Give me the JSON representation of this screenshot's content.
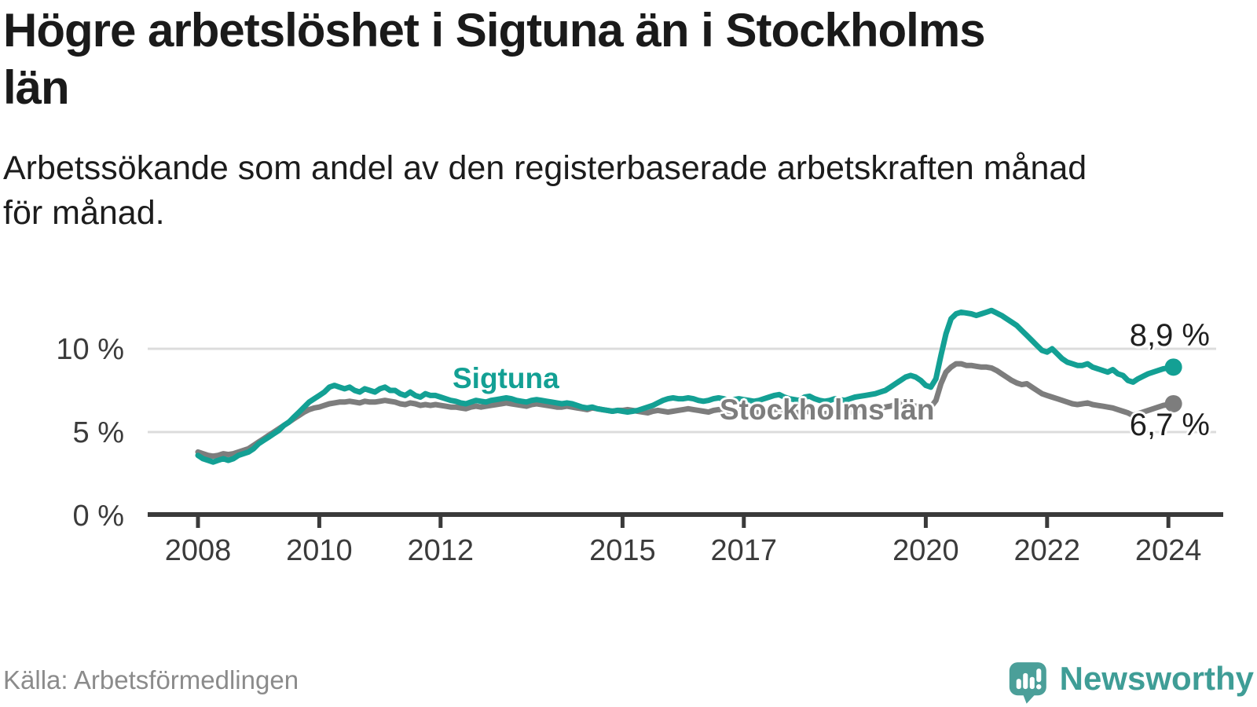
{
  "header": {
    "title": "Högre arbetslöshet i Sigtuna än i Stockholms\nlän",
    "subtitle": "Arbetssökande som andel av den registerbaserade arbetskraften månad\nför månad."
  },
  "footer": {
    "source": "Källa: Arbetsförmedlingen",
    "logo_text": "Newsworthy"
  },
  "colors": {
    "sigtuna": "#13a094",
    "stockholm": "#7d7d7d",
    "grid": "#dcdcdc",
    "axis": "#3a3a3a",
    "logo_bubble": "#4b9f99",
    "logo_text": "#3f9d96",
    "end_label_text": "#1f1f1f"
  },
  "chart_data": {
    "type": "line",
    "unit": "%",
    "frequency": "monthly",
    "start": "2008-01",
    "end": "2024-02",
    "grid": "horizontal-only",
    "legend_position": "inline-labels",
    "x_ticks": [
      2008,
      2010,
      2012,
      2015,
      2017,
      2020,
      2022,
      2024
    ],
    "x_tick_labels": [
      "2008",
      "2010",
      "2012",
      "2015",
      "2017",
      "2020",
      "2022",
      "2024"
    ],
    "y_ticks": [
      {
        "value": 10,
        "label": "10 %"
      },
      {
        "value": 5,
        "label": "5 %"
      },
      {
        "value": 0,
        "label": "0 %"
      }
    ],
    "ylim": [
      0,
      13.5
    ],
    "xlim": [
      2007.2,
      2024.9
    ],
    "series": [
      {
        "name": "Sigtuna",
        "end_label": "8,9 %",
        "end_value": 8.9,
        "values": [
          3.6,
          3.4,
          3.3,
          3.2,
          3.3,
          3.4,
          3.3,
          3.4,
          3.6,
          3.7,
          3.8,
          4.0,
          4.3,
          4.5,
          4.7,
          4.9,
          5.1,
          5.4,
          5.6,
          5.9,
          6.2,
          6.5,
          6.8,
          7.0,
          7.2,
          7.4,
          7.7,
          7.8,
          7.7,
          7.6,
          7.7,
          7.5,
          7.4,
          7.6,
          7.5,
          7.4,
          7.6,
          7.7,
          7.5,
          7.5,
          7.3,
          7.2,
          7.4,
          7.2,
          7.1,
          7.3,
          7.2,
          7.2,
          7.1,
          7.0,
          6.9,
          6.85,
          6.75,
          6.7,
          6.8,
          6.9,
          6.85,
          6.8,
          6.9,
          6.95,
          7.0,
          7.05,
          7.0,
          6.9,
          6.85,
          6.8,
          6.9,
          6.95,
          6.9,
          6.85,
          6.8,
          6.75,
          6.7,
          6.75,
          6.7,
          6.6,
          6.5,
          6.45,
          6.5,
          6.4,
          6.35,
          6.3,
          6.25,
          6.3,
          6.25,
          6.2,
          6.25,
          6.3,
          6.4,
          6.5,
          6.6,
          6.75,
          6.9,
          7.0,
          7.05,
          7.0,
          7.0,
          7.05,
          7.0,
          6.9,
          6.85,
          6.9,
          7.0,
          7.05,
          7.0,
          6.9,
          6.95,
          7.0,
          6.95,
          6.9,
          6.85,
          6.9,
          7.0,
          7.1,
          7.2,
          7.25,
          7.1,
          7.0,
          6.95,
          6.9,
          7.1,
          7.15,
          7.0,
          6.9,
          6.85,
          6.9,
          7.0,
          6.95,
          6.9,
          7.0,
          7.1,
          7.15,
          7.2,
          7.25,
          7.3,
          7.4,
          7.5,
          7.7,
          7.9,
          8.1,
          8.3,
          8.4,
          8.3,
          8.1,
          7.8,
          7.7,
          8.2,
          9.6,
          10.9,
          11.8,
          12.1,
          12.2,
          12.15,
          12.1,
          12.0,
          12.1,
          12.2,
          12.3,
          12.15,
          12.0,
          11.8,
          11.6,
          11.4,
          11.1,
          10.8,
          10.5,
          10.2,
          9.9,
          9.8,
          10.0,
          9.7,
          9.4,
          9.2,
          9.1,
          9.0,
          9.0,
          9.1,
          8.9,
          8.8,
          8.7,
          8.6,
          8.75,
          8.5,
          8.4,
          8.1,
          8.0,
          8.2,
          8.35,
          8.5,
          8.6,
          8.7,
          8.8,
          8.85,
          8.9
        ]
      },
      {
        "name": "Stockholms län",
        "end_label": "6,7 %",
        "end_value": 6.7,
        "values": [
          3.8,
          3.7,
          3.6,
          3.55,
          3.6,
          3.7,
          3.65,
          3.7,
          3.8,
          3.9,
          4.0,
          4.2,
          4.4,
          4.6,
          4.8,
          5.0,
          5.2,
          5.4,
          5.6,
          5.8,
          6.0,
          6.2,
          6.35,
          6.45,
          6.5,
          6.6,
          6.7,
          6.75,
          6.8,
          6.8,
          6.85,
          6.8,
          6.75,
          6.85,
          6.8,
          6.8,
          6.85,
          6.9,
          6.85,
          6.8,
          6.7,
          6.65,
          6.75,
          6.7,
          6.6,
          6.65,
          6.6,
          6.65,
          6.6,
          6.55,
          6.5,
          6.5,
          6.45,
          6.4,
          6.5,
          6.55,
          6.5,
          6.55,
          6.6,
          6.65,
          6.7,
          6.75,
          6.7,
          6.65,
          6.6,
          6.55,
          6.65,
          6.7,
          6.65,
          6.6,
          6.55,
          6.5,
          6.5,
          6.55,
          6.5,
          6.45,
          6.4,
          6.35,
          6.45,
          6.4,
          6.35,
          6.3,
          6.25,
          6.3,
          6.3,
          6.35,
          6.3,
          6.25,
          6.2,
          6.15,
          6.25,
          6.3,
          6.25,
          6.2,
          6.25,
          6.3,
          6.35,
          6.4,
          6.35,
          6.3,
          6.25,
          6.2,
          6.3,
          6.35,
          6.3,
          6.25,
          6.2,
          6.25,
          6.2,
          6.25,
          6.2,
          6.15,
          6.2,
          6.25,
          6.35,
          6.4,
          6.3,
          6.25,
          6.2,
          6.15,
          6.2,
          6.25,
          6.2,
          6.15,
          6.1,
          6.15,
          6.25,
          6.2,
          6.15,
          6.2,
          6.25,
          6.3,
          6.3,
          6.35,
          6.4,
          6.45,
          6.5,
          6.55,
          6.65,
          6.7,
          6.65,
          6.6,
          6.55,
          6.5,
          6.5,
          6.5,
          6.9,
          7.9,
          8.6,
          8.9,
          9.1,
          9.1,
          9.0,
          9.0,
          8.95,
          8.9,
          8.9,
          8.85,
          8.7,
          8.5,
          8.3,
          8.1,
          7.95,
          7.85,
          7.9,
          7.7,
          7.5,
          7.3,
          7.2,
          7.1,
          7.0,
          6.9,
          6.8,
          6.7,
          6.65,
          6.7,
          6.75,
          6.65,
          6.6,
          6.55,
          6.5,
          6.45,
          6.35,
          6.25,
          6.15,
          6.0,
          6.1,
          6.2,
          6.3,
          6.4,
          6.5,
          6.6,
          6.65,
          6.7
        ]
      }
    ]
  }
}
